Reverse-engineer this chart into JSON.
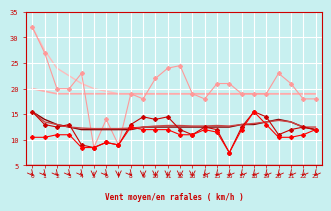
{
  "background_color": "#c8f0f0",
  "grid_color": "#ffffff",
  "xlim": [
    -0.5,
    23.5
  ],
  "ylim": [
    5,
    35
  ],
  "yticks": [
    5,
    10,
    15,
    20,
    25,
    30,
    35
  ],
  "xticks": [
    0,
    1,
    2,
    3,
    4,
    5,
    6,
    7,
    8,
    9,
    10,
    11,
    12,
    13,
    14,
    15,
    16,
    17,
    18,
    19,
    20,
    21,
    22,
    23
  ],
  "xlabel": "Vent moyen/en rafales ( km/h )",
  "xlabel_color": "#cc0000",
  "tick_color": "#cc0000",
  "series": [
    {
      "comment": "light pink smooth decreasing trend line (no markers)",
      "y": [
        32,
        27.5,
        24,
        22.5,
        21,
        20,
        19.5,
        19,
        19,
        19,
        19,
        19,
        19,
        19,
        19,
        19,
        19,
        19,
        19,
        19,
        19,
        19,
        19,
        19
      ],
      "color": "#ffbbbb",
      "lw": 1.0,
      "marker": null,
      "zorder": 1
    },
    {
      "comment": "light pink jagged line with diamond markers - high values",
      "y": [
        32,
        27,
        20,
        20,
        23,
        8.5,
        14,
        9,
        19,
        18,
        22,
        24,
        24.5,
        19,
        18,
        21,
        21,
        19,
        19,
        19,
        23,
        21,
        18,
        18
      ],
      "color": "#ff9999",
      "lw": 0.8,
      "marker": "D",
      "ms": 2.0,
      "zorder": 2
    },
    {
      "comment": "medium pink smooth line - upper regression",
      "y": [
        20,
        19.5,
        19,
        19,
        19,
        19,
        19,
        19,
        19,
        19,
        19,
        19,
        19,
        19,
        19,
        19,
        19,
        19,
        19,
        19,
        19,
        19,
        19,
        19
      ],
      "color": "#ffaaaa",
      "lw": 1.2,
      "marker": null,
      "zorder": 1
    },
    {
      "comment": "dark red smooth line - lower regression trend",
      "y": [
        15.5,
        14,
        13,
        12.5,
        12,
        12,
        12,
        12,
        12,
        12.5,
        12.5,
        12.5,
        12.5,
        12.5,
        12.5,
        12.5,
        12.5,
        13,
        13,
        13.5,
        14,
        13.5,
        12.5,
        12
      ],
      "color": "#880000",
      "lw": 1.0,
      "marker": null,
      "zorder": 3
    },
    {
      "comment": "medium dark red smooth line",
      "y": [
        15.5,
        13.5,
        13,
        12.5,
        12.3,
        12.2,
        12.2,
        12.2,
        12.3,
        12.5,
        12.7,
        12.8,
        12.8,
        12.7,
        12.7,
        12.8,
        12.7,
        13,
        13.2,
        13.5,
        13.8,
        13.5,
        12.5,
        12.5
      ],
      "color": "#cc4444",
      "lw": 1.0,
      "marker": null,
      "zorder": 3
    },
    {
      "comment": "red jagged line with diamond markers - medium values",
      "y": [
        15.5,
        13,
        12.5,
        13,
        9,
        8.5,
        9.5,
        9,
        13,
        14.5,
        14,
        14.5,
        12,
        11,
        12.5,
        12,
        7.5,
        12.5,
        15.5,
        14.5,
        11,
        12,
        12.5,
        12
      ],
      "color": "#cc0000",
      "lw": 0.8,
      "marker": "D",
      "ms": 2.0,
      "zorder": 4
    },
    {
      "comment": "bright red jagged line with diamond markers - low values",
      "y": [
        10.5,
        10.5,
        11,
        11,
        8.5,
        8.5,
        9.5,
        9,
        12.5,
        12,
        12,
        12,
        11,
        11,
        12,
        11.5,
        7.5,
        12,
        15.5,
        13,
        10.5,
        10.5,
        11,
        12
      ],
      "color": "#ff0000",
      "lw": 0.8,
      "marker": "D",
      "ms": 2.0,
      "zorder": 5
    }
  ],
  "wind_arrow_angles": [
    45,
    45,
    45,
    45,
    45,
    0,
    45,
    0,
    45,
    0,
    0,
    0,
    0,
    0,
    315,
    315,
    315,
    315,
    315,
    315,
    315,
    315,
    315,
    315
  ],
  "wind_arrow_color": "#cc0000",
  "hline_y": 5.0,
  "hline_color": "#cc0000"
}
